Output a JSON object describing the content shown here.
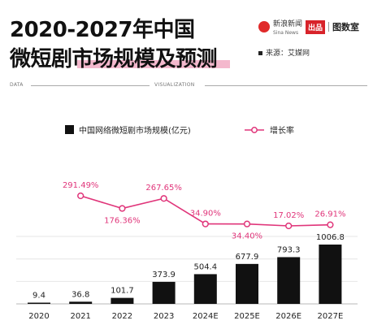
{
  "header": {
    "title_line1": "2020-2027年中国",
    "title_line2": "微短剧市场规模及预测",
    "brand_name": "新浪新闻",
    "brand_sub": "Sina News",
    "brand_tag": "出品",
    "brand_studio": "图数室",
    "source": "来源：艾媒网",
    "data_label": "DATA",
    "viz_label": "VISUALIZATION"
  },
  "legend": {
    "bar_label": "中国网络微短剧市场规模(亿元)",
    "line_label": "增长率"
  },
  "colors": {
    "bar": "#111111",
    "line": "#e0357a",
    "highlight": "#f4b8cd"
  },
  "chart_data": {
    "type": "bar",
    "categories": [
      "2020",
      "2021",
      "2022",
      "2023",
      "2024E",
      "2025E",
      "2026E",
      "2027E"
    ],
    "series": [
      {
        "name": "中国网络微短剧市场规模(亿元)",
        "type": "bar",
        "values": [
          9.4,
          36.8,
          101.7,
          373.9,
          504.4,
          677.9,
          793.3,
          1006.8
        ],
        "labels": [
          "9.4",
          "36.8",
          "101.7",
          "373.9",
          "504.4",
          "677.9",
          "793.3",
          "1006.8"
        ]
      },
      {
        "name": "增长率",
        "type": "line",
        "x": [
          "2021",
          "2022",
          "2023",
          "2024E",
          "2025E",
          "2026E",
          "2027E"
        ],
        "values": [
          291.49,
          176.36,
          267.65,
          34.9,
          34.4,
          17.02,
          26.91
        ],
        "labels": [
          "291.49%",
          "176.36%",
          "267.65%",
          "34.90%",
          "34.40%",
          "17.02%",
          "26.91%"
        ]
      }
    ]
  }
}
